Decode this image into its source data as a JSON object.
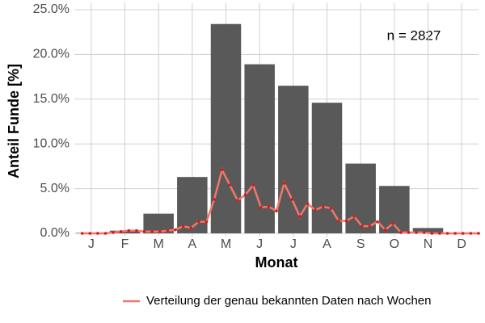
{
  "chart_data": {
    "type": "bar",
    "categories": [
      "J",
      "F",
      "M",
      "A",
      "M",
      "J",
      "J",
      "A",
      "S",
      "O",
      "N",
      "D"
    ],
    "values": [
      0.05,
      0.3,
      2.2,
      6.3,
      23.4,
      18.9,
      16.5,
      14.6,
      7.8,
      5.3,
      0.6,
      0.05
    ],
    "color": "#595959",
    "x_label": "Monat",
    "y_label": "Anteil Funde [%]",
    "annotation": "n = 2827",
    "ylim": [
      0,
      25
    ],
    "yticks": [
      {
        "value": 0,
        "label": "0.0%"
      },
      {
        "value": 5,
        "label": "5.0%"
      },
      {
        "value": 10,
        "label": "10.0%"
      },
      {
        "value": 15,
        "label": "15.0%"
      },
      {
        "value": 20,
        "label": "20.0%"
      },
      {
        "value": 25,
        "label": "25.0%"
      }
    ],
    "grid": true,
    "legend": "bottom",
    "series": [
      {
        "name": "Verteilung der genau bekannten Daten nach Wochen",
        "type": "line",
        "color": "#f0776a",
        "marker_color": "#d7191c",
        "xlim": [
          0,
          52
        ],
        "x": [
          1,
          2,
          3,
          4,
          5,
          6,
          7,
          8,
          9,
          10,
          11,
          12,
          13,
          14,
          15,
          16,
          17,
          18,
          19,
          20,
          21,
          22,
          23,
          24,
          25,
          26,
          27,
          28,
          29,
          30,
          31,
          32,
          33,
          34,
          35,
          36,
          37,
          38,
          39,
          40,
          41,
          42,
          43,
          44,
          45,
          46,
          47,
          48,
          49,
          50,
          51,
          52
        ],
        "values": [
          0,
          0,
          0,
          0,
          0.1,
          0.2,
          0.3,
          0.3,
          0.2,
          0.2,
          0.2,
          0.3,
          0.4,
          0.8,
          0.6,
          1.3,
          1.3,
          3.8,
          7.1,
          5.4,
          3.7,
          4.3,
          5.4,
          2.9,
          3.0,
          2.5,
          5.6,
          3.8,
          1.9,
          3.3,
          2.6,
          3.0,
          2.8,
          1.4,
          1.4,
          1.9,
          0.8,
          0.8,
          1.3,
          0.4,
          1.1,
          0.1,
          0.1,
          0.1,
          0.1,
          0,
          0,
          0,
          0,
          0,
          0,
          0
        ]
      }
    ]
  }
}
